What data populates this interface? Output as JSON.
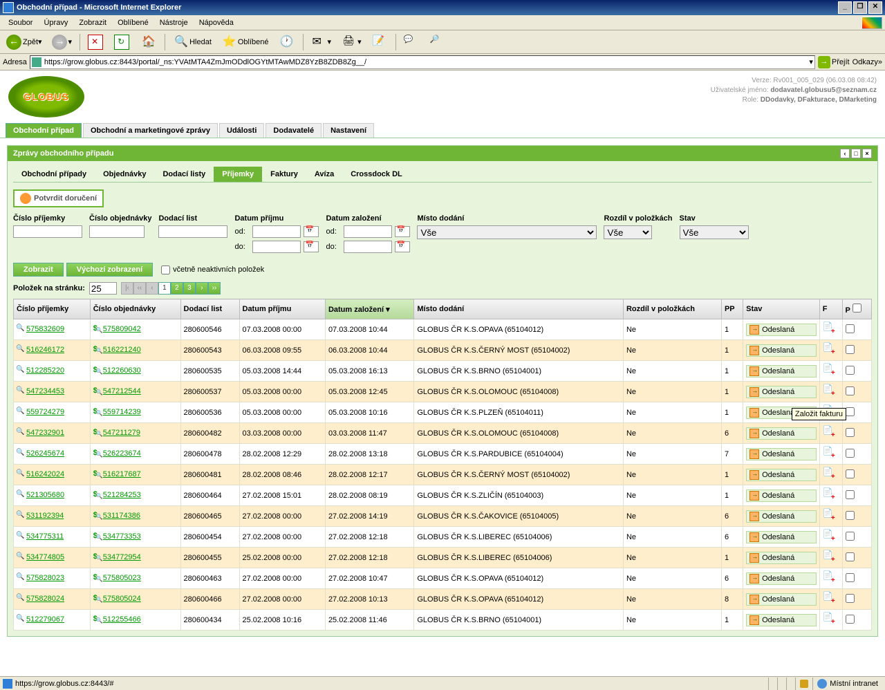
{
  "window": {
    "title": "Obchodní případ - Microsoft Internet Explorer",
    "min": "_",
    "max": "❐",
    "close": "✕"
  },
  "menubar": {
    "items": [
      "Soubor",
      "Úpravy",
      "Zobrazit",
      "Oblíbené",
      "Nástroje",
      "Nápověda"
    ]
  },
  "toolbar": {
    "back": "Zpět",
    "search": "Hledat",
    "favorites": "Oblíbené"
  },
  "addressbar": {
    "label": "Adresa",
    "url": "https://grow.globus.cz:8443/portal/_ns:YVAtMTA4ZmJmODdlOGYtMTAwMDZ8YzB8ZDB8Zg__/",
    "go": "Přejít",
    "links": "Odkazy"
  },
  "header_info": {
    "version": "Verze: Rv001_005_029 (06.03.08 08:42)",
    "user_label": "Uživatelské jméno:",
    "user": "dodavatel.globusu5@seznam.cz",
    "role_label": "Role:",
    "roles": "DDodavky, DFakturace, DMarketing"
  },
  "maintabs": [
    "Obchodní případ",
    "Obchodní a marketingové zprávy",
    "Události",
    "Dodavatelé",
    "Nastavení"
  ],
  "panel_title": "Zprávy obchodního případu",
  "subtabs": [
    "Obchodní případy",
    "Objednávky",
    "Dodací listy",
    "Příjemky",
    "Faktury",
    "Avíza",
    "Crossdock DL"
  ],
  "confirm_btn": "Potvrdit doručení",
  "filters": {
    "prijemka": "Číslo příjemky",
    "objednavka": "Číslo objednávky",
    "dodaci": "Dodací list",
    "datum_prijmu": "Datum příjmu",
    "datum_zalozeni": "Datum založení",
    "misto": "Místo dodání",
    "rozdil": "Rozdíl v položkách",
    "stav": "Stav",
    "od": "od:",
    "do": "do:",
    "vse": "Vše"
  },
  "actions": {
    "zobrazit": "Zobrazit",
    "vychozi": "Výchozí zobrazení",
    "neaktivni": "včetně neaktivních položek"
  },
  "pager": {
    "label": "Položek na stránku:",
    "perpage": "25",
    "pages": [
      "1",
      "2",
      "3"
    ]
  },
  "columns": [
    "Číslo příjemky",
    "Číslo objednávky",
    "Dodací list",
    "Datum příjmu",
    "Datum založení",
    "Místo dodání",
    "Rozdíl v položkách",
    "PP",
    "Stav",
    "F",
    "P"
  ],
  "status_label": "Odeslaná",
  "tooltip": "Založit fakturu",
  "rows": [
    {
      "p": "575832609",
      "o": "575809042",
      "d": "280600546",
      "dp": "07.03.2008 00:00",
      "dz": "07.03.2008 10:44",
      "m": "GLOBUS ČR K.S.OPAVA (65104012)",
      "r": "Ne",
      "pp": "1"
    },
    {
      "p": "516246172",
      "o": "516221240",
      "d": "280600543",
      "dp": "06.03.2008 09:55",
      "dz": "06.03.2008 10:44",
      "m": "GLOBUS ČR K.S.ČERNÝ MOST (65104002)",
      "r": "Ne",
      "pp": "1"
    },
    {
      "p": "512285220",
      "o": "512260630",
      "d": "280600535",
      "dp": "05.03.2008 14:44",
      "dz": "05.03.2008 16:13",
      "m": "GLOBUS ČR K.S.BRNO (65104001)",
      "r": "Ne",
      "pp": "1"
    },
    {
      "p": "547234453",
      "o": "547212544",
      "d": "280600537",
      "dp": "05.03.2008 00:00",
      "dz": "05.03.2008 12:45",
      "m": "GLOBUS ČR K.S.OLOMOUC (65104008)",
      "r": "Ne",
      "pp": "1"
    },
    {
      "p": "559724279",
      "o": "559714239",
      "d": "280600536",
      "dp": "05.03.2008 00:00",
      "dz": "05.03.2008 10:16",
      "m": "GLOBUS ČR K.S.PLZEŇ (65104011)",
      "r": "Ne",
      "pp": "1"
    },
    {
      "p": "547232901",
      "o": "547211279",
      "d": "280600482",
      "dp": "03.03.2008 00:00",
      "dz": "03.03.2008 11:47",
      "m": "GLOBUS ČR K.S.OLOMOUC (65104008)",
      "r": "Ne",
      "pp": "6"
    },
    {
      "p": "526245674",
      "o": "526223674",
      "d": "280600478",
      "dp": "28.02.2008 12:29",
      "dz": "28.02.2008 13:18",
      "m": "GLOBUS ČR K.S.PARDUBICE (65104004)",
      "r": "Ne",
      "pp": "7"
    },
    {
      "p": "516242024",
      "o": "516217687",
      "d": "280600481",
      "dp": "28.02.2008 08:46",
      "dz": "28.02.2008 12:17",
      "m": "GLOBUS ČR K.S.ČERNÝ MOST (65104002)",
      "r": "Ne",
      "pp": "1"
    },
    {
      "p": "521305680",
      "o": "521284253",
      "d": "280600464",
      "dp": "27.02.2008 15:01",
      "dz": "28.02.2008 08:19",
      "m": "GLOBUS ČR K.S.ZLIČÍN (65104003)",
      "r": "Ne",
      "pp": "1"
    },
    {
      "p": "531192394",
      "o": "531174386",
      "d": "280600465",
      "dp": "27.02.2008 00:00",
      "dz": "27.02.2008 14:19",
      "m": "GLOBUS ČR K.S.ČAKOVICE (65104005)",
      "r": "Ne",
      "pp": "6"
    },
    {
      "p": "534775311",
      "o": "534773353",
      "d": "280600454",
      "dp": "27.02.2008 00:00",
      "dz": "27.02.2008 12:18",
      "m": "GLOBUS ČR K.S.LIBEREC (65104006)",
      "r": "Ne",
      "pp": "6"
    },
    {
      "p": "534774805",
      "o": "534772954",
      "d": "280600455",
      "dp": "25.02.2008 00:00",
      "dz": "27.02.2008 12:18",
      "m": "GLOBUS ČR K.S.LIBEREC (65104006)",
      "r": "Ne",
      "pp": "1"
    },
    {
      "p": "575828023",
      "o": "575805023",
      "d": "280600463",
      "dp": "27.02.2008 00:00",
      "dz": "27.02.2008 10:47",
      "m": "GLOBUS ČR K.S.OPAVA (65104012)",
      "r": "Ne",
      "pp": "6"
    },
    {
      "p": "575828024",
      "o": "575805024",
      "d": "280600466",
      "dp": "27.02.2008 00:00",
      "dz": "27.02.2008 10:13",
      "m": "GLOBUS ČR K.S.OPAVA (65104012)",
      "r": "Ne",
      "pp": "8"
    },
    {
      "p": "512279067",
      "o": "512255466",
      "d": "280600434",
      "dp": "25.02.2008 10:16",
      "dz": "25.02.2008 11:46",
      "m": "GLOBUS ČR K.S.BRNO (65104001)",
      "r": "Ne",
      "pp": "1"
    }
  ],
  "statusbar": {
    "url": "https://grow.globus.cz:8443/#",
    "zone": "Místní intranet"
  }
}
